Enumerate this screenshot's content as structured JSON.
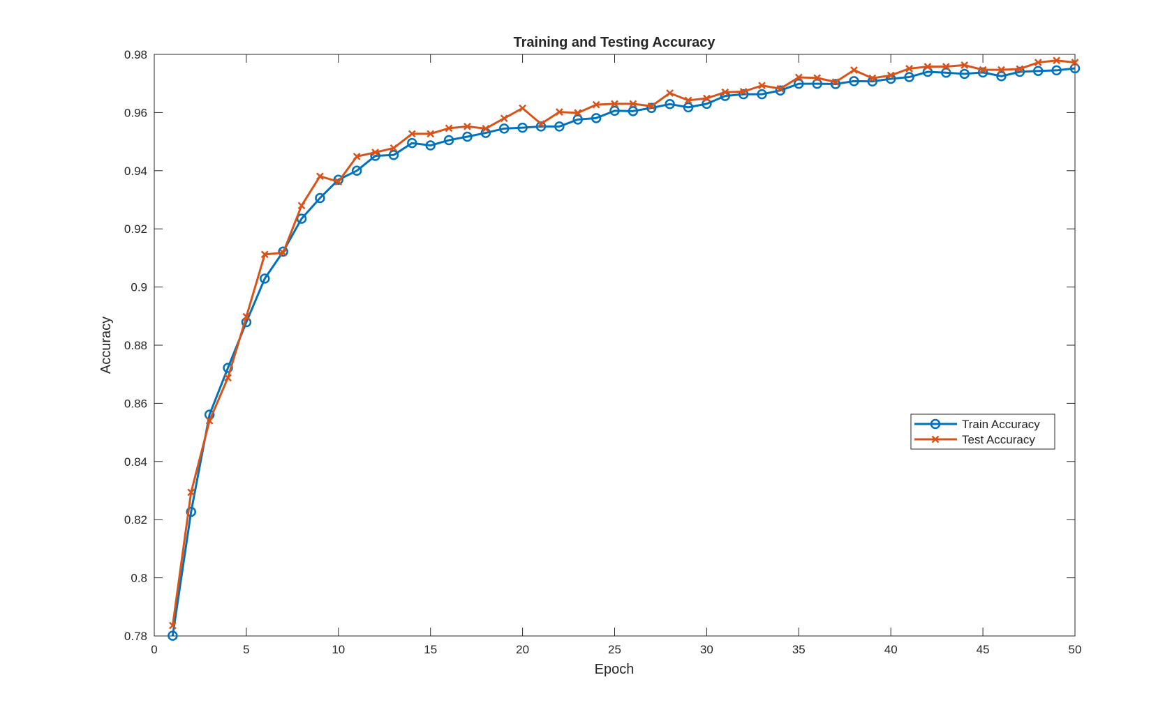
{
  "chart_data": {
    "type": "line",
    "title": "Training and Testing Accuracy",
    "xlabel": "Epoch",
    "ylabel": "Accuracy",
    "xlim": [
      0,
      50
    ],
    "ylim": [
      0.78,
      0.98
    ],
    "x_ticks": [
      0,
      5,
      10,
      15,
      20,
      25,
      30,
      35,
      40,
      45,
      50
    ],
    "y_ticks": [
      0.78,
      0.8,
      0.82,
      0.84,
      0.86,
      0.88,
      0.9,
      0.92,
      0.94,
      0.96,
      0.98
    ],
    "y_tick_labels": [
      "0.78",
      "0.8",
      "0.82",
      "0.84",
      "0.86",
      "0.88",
      "0.9",
      "0.92",
      "0.94",
      "0.96",
      "0.98"
    ],
    "grid": false,
    "legend_position": "right",
    "x": [
      1,
      2,
      3,
      4,
      5,
      6,
      7,
      8,
      9,
      10,
      11,
      12,
      13,
      14,
      15,
      16,
      17,
      18,
      19,
      20,
      21,
      22,
      23,
      24,
      25,
      26,
      27,
      28,
      29,
      30,
      31,
      32,
      33,
      34,
      35,
      36,
      37,
      38,
      39,
      40,
      41,
      42,
      43,
      44,
      45,
      46,
      47,
      48,
      49,
      50
    ],
    "series": [
      {
        "name": "Train Accuracy",
        "color": "#0072BD",
        "marker": "circle",
        "values": [
          0.7801,
          0.8227,
          0.8561,
          0.8722,
          0.8879,
          0.9029,
          0.9122,
          0.9235,
          0.9306,
          0.9369,
          0.94,
          0.9451,
          0.9454,
          0.9495,
          0.9487,
          0.9505,
          0.9517,
          0.953,
          0.9545,
          0.9548,
          0.9552,
          0.9552,
          0.9576,
          0.9581,
          0.9606,
          0.9605,
          0.9616,
          0.9629,
          0.9618,
          0.963,
          0.9657,
          0.9663,
          0.9663,
          0.9676,
          0.9699,
          0.9699,
          0.9698,
          0.9708,
          0.9707,
          0.9716,
          0.9722,
          0.974,
          0.9737,
          0.9733,
          0.9738,
          0.9725,
          0.974,
          0.9743,
          0.9745,
          0.9752
        ]
      },
      {
        "name": "Test Accuracy",
        "color": "#D95319",
        "marker": "x",
        "values": [
          0.7836,
          0.8294,
          0.854,
          0.8688,
          0.8898,
          0.9112,
          0.9118,
          0.928,
          0.9381,
          0.9362,
          0.9449,
          0.9463,
          0.9478,
          0.9527,
          0.9527,
          0.9546,
          0.9552,
          0.9545,
          0.958,
          0.9615,
          0.9561,
          0.9602,
          0.9599,
          0.9627,
          0.963,
          0.963,
          0.9622,
          0.9667,
          0.9642,
          0.9649,
          0.967,
          0.9672,
          0.9693,
          0.9682,
          0.9721,
          0.9719,
          0.9705,
          0.9746,
          0.9718,
          0.9728,
          0.9751,
          0.9758,
          0.9758,
          0.9763,
          0.9747,
          0.9747,
          0.975,
          0.9772,
          0.9779,
          0.9772
        ]
      }
    ]
  }
}
